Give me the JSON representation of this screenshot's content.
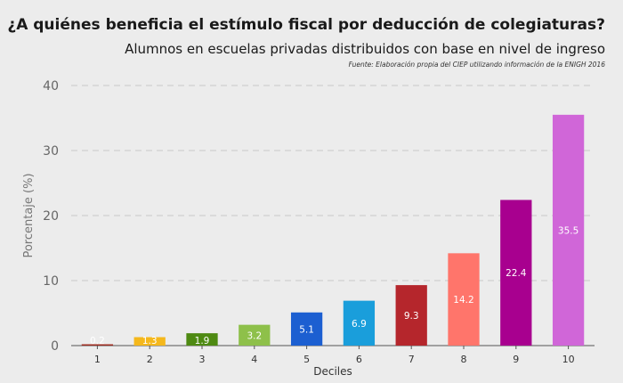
{
  "chart_data": {
    "type": "bar",
    "title": "¿A quiénes beneficia el estímulo fiscal por deducción de colegiaturas?",
    "subtitle": "Alumnos en escuelas privadas distribuidos con base en nivel de ingreso",
    "source": "Fuente: Elaboración propia del CIEP utilizando información de la ENIGH 2016",
    "xlabel": "Deciles",
    "ylabel": "Porcentaje (%)",
    "categories": [
      "1",
      "2",
      "3",
      "4",
      "5",
      "6",
      "7",
      "8",
      "9",
      "10"
    ],
    "values": [
      0.2,
      1.3,
      1.9,
      3.2,
      5.1,
      6.9,
      9.3,
      14.2,
      22.4,
      35.5
    ],
    "value_labels": [
      "0.2",
      "1.3",
      "1.9",
      "3.2",
      "5.1",
      "6.9",
      "9.3",
      "14.2",
      "22.4",
      "35.5"
    ],
    "colors": [
      "#9e2a1e",
      "#f5b81c",
      "#4e8a12",
      "#8ec04a",
      "#1c5fd1",
      "#1a9edb",
      "#b5262c",
      "#ff756b",
      "#a8008f",
      "#d066d8"
    ],
    "ylim": [
      0,
      40
    ],
    "yticks": [
      0,
      10,
      20,
      30,
      40
    ],
    "grid": "horizontal-dashed",
    "legend": "none"
  }
}
